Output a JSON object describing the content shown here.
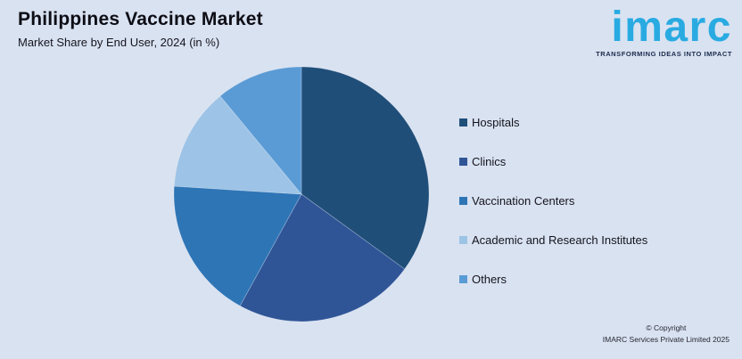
{
  "header": {
    "title": "Philippines Vaccine Market",
    "subtitle": "Market Share by End User, 2024 (in %)"
  },
  "branding": {
    "logo_text": "imarc",
    "tagline": "TRANSFORMING IDEAS INTO IMPACT",
    "logo_color": "#29abe2",
    "tagline_color": "#1b2b4d"
  },
  "footer": {
    "copyright_line1": "© Copyright",
    "copyright_line2": "IMARC Services Private Limited 2025"
  },
  "colors": {
    "background": "#d9e2f1"
  },
  "chart_data": {
    "type": "pie",
    "title": "Philippines Vaccine Market",
    "subtitle": "Market Share by End User, 2024 (in %)",
    "categories": [
      "Hospitals",
      "Clinics",
      "Vaccination Centers",
      "Academic and Research Institutes",
      "Others"
    ],
    "values": [
      35,
      23,
      18,
      13,
      11
    ],
    "colors": [
      "#1f4e79",
      "#2f5597",
      "#2e75b6",
      "#9dc3e6",
      "#5b9bd5"
    ],
    "start_angle_deg": 0,
    "direction": "clockwise",
    "legend_position": "right",
    "data_labels": "none"
  }
}
